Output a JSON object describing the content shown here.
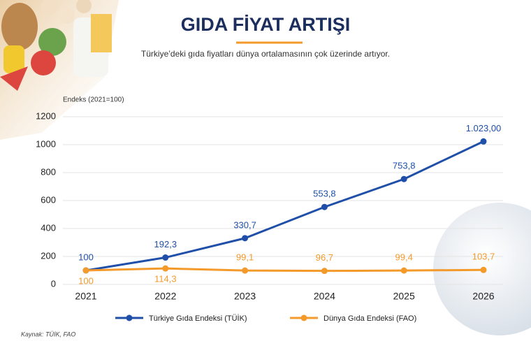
{
  "chart_data": {
    "type": "line",
    "title": "GIDA FİYAT ARTIŞI",
    "subtitle": "Türkiye’deki gıda fiyatları dünya ortalamasının çok üzerinde artıyor.",
    "y_label": "Endeks (2021=100)",
    "source": "Kaynak: TÜİK, FAO",
    "categories": [
      "2021",
      "2022",
      "2023",
      "2024",
      "2025",
      "2026"
    ],
    "series": [
      {
        "name": "Türkiye Gıda Endeksi (TÜİK)",
        "color": "#1f4fa8",
        "values": [
          100,
          192.3,
          330.7,
          553.8,
          753.8,
          1023
        ],
        "value_labels": [
          "100",
          "192,3",
          "330,7",
          "553,8",
          "753,8",
          "1.023,00"
        ]
      },
      {
        "name": "Dünya Gıda Endeksi (FAO)",
        "color": "#f39a2b",
        "values": [
          100,
          114.3,
          99.1,
          96.7,
          99.4,
          103.7
        ],
        "value_labels": [
          "100",
          "114,3",
          "99,1",
          "96,7",
          "99,4",
          "103,7"
        ]
      }
    ],
    "ylim": [
      0,
      1200
    ],
    "yticks": [
      0,
      200,
      400,
      600,
      800,
      1000,
      1200
    ],
    "grid": true
  }
}
